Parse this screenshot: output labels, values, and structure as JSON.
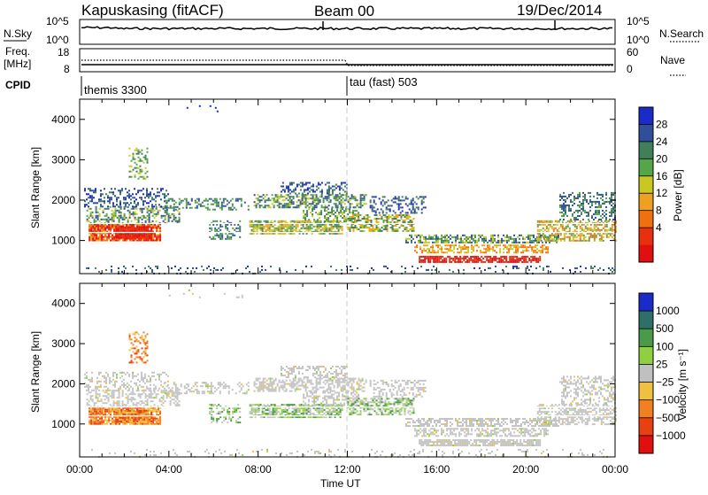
{
  "header": {
    "station": "Kapuskasing (fitACF)",
    "beam": "Beam 00",
    "date": "19/Dec/2014"
  },
  "strip_panels": {
    "nsky_label": "N.Sky",
    "nsky_ticks": [
      "10^5",
      "10^0"
    ],
    "nsearch_label": "N.Search",
    "nsearch_ticks": [
      "10^5",
      "10^0"
    ],
    "freq_label": "Freq.",
    "freq_unit": "[MHz]",
    "freq_ticks": [
      "18",
      "8"
    ],
    "nave_label": "Nave",
    "nave_ticks": [
      "60",
      "0"
    ],
    "cpid_label": "CPID",
    "cpid_segments": [
      "themis 3300",
      "tau (fast) 503"
    ]
  },
  "colors": {
    "power_scale": [
      "#1a2cc8",
      "#2f4f9a",
      "#3f7f5a",
      "#55a64a",
      "#c8c820",
      "#f0a020",
      "#f07010",
      "#e83010",
      "#e01010"
    ],
    "velocity_scale": [
      "#1a2cc8",
      "#2f6f6a",
      "#4a9a4a",
      "#8ed040",
      "#c0c0c0",
      "#f0c040",
      "#f08020",
      "#e84010",
      "#e01010"
    ],
    "scatter_gray": "#c4c4c4"
  },
  "chart_data": [
    {
      "type": "heatmap",
      "title": "Power",
      "ylabel": "Slant Range [km]",
      "xlabel": "Time UT",
      "x_ticks": [
        "00:00",
        "04:00",
        "08:00",
        "12:00",
        "16:00",
        "20:00",
        "00:00"
      ],
      "y_ticks": [
        "1000",
        "2000",
        "3000",
        "4000"
      ],
      "ylim": [
        180,
        4500
      ],
      "colorbar_label": "Power [dB]",
      "colorbar_ticks": [
        "28",
        "24",
        "20",
        "16",
        "12",
        "8",
        "4"
      ],
      "colorbar_range": [
        0,
        32
      ]
    },
    {
      "type": "heatmap",
      "title": "Velocity",
      "ylabel": "Slant Range [km]",
      "xlabel": "Time UT",
      "x_ticks": [
        "00:00",
        "04:00",
        "08:00",
        "12:00",
        "16:00",
        "20:00",
        "00:00"
      ],
      "y_ticks": [
        "1000",
        "2000",
        "3000",
        "4000"
      ],
      "ylim": [
        180,
        4500
      ],
      "colorbar_label": "Velocity [m s⁻¹]",
      "colorbar_ticks": [
        "1000",
        "500",
        "100",
        "25",
        "−25",
        "−100",
        "−500",
        "−1000"
      ]
    }
  ],
  "x_axis": {
    "label": "Time UT",
    "ticks": [
      "00:00",
      "04:00",
      "08:00",
      "12:00",
      "16:00",
      "20:00",
      "00:00"
    ]
  }
}
